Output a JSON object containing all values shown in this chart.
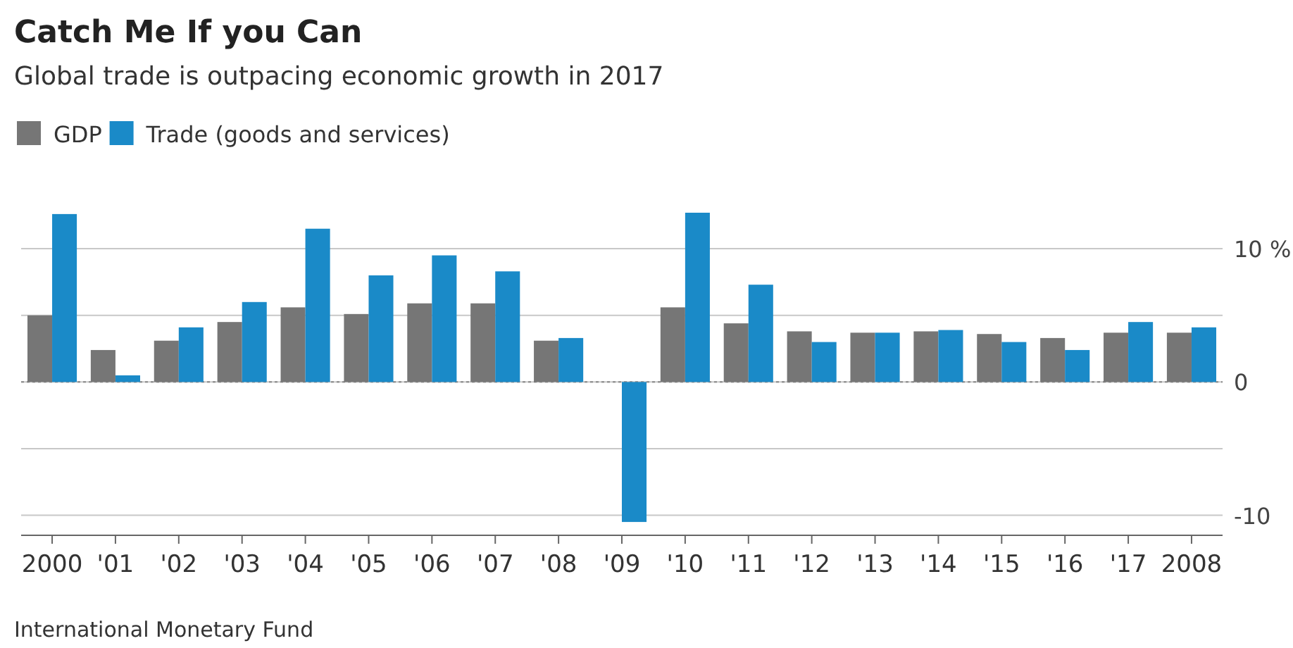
{
  "chart_data": {
    "type": "bar",
    "title": "Catch Me If you Can",
    "subtitle": "Global trade is outpacing economic growth in 2017",
    "categories": [
      "2000",
      "'01",
      "'02",
      "'03",
      "'04",
      "'05",
      "'06",
      "'07",
      "'08",
      "'09",
      "'10",
      "'11",
      "'12",
      "'13",
      "'14",
      "'15",
      "'16",
      "'17",
      "2008"
    ],
    "series": [
      {
        "name": "GDP",
        "color": "#767676",
        "values": [
          5.0,
          2.4,
          3.1,
          4.5,
          5.6,
          5.1,
          5.9,
          5.9,
          3.1,
          null,
          5.6,
          4.4,
          3.8,
          3.7,
          3.8,
          3.6,
          3.3,
          3.7,
          3.7
        ]
      },
      {
        "name": "Trade (goods and services)",
        "color": "#1a8ac8",
        "values": [
          12.6,
          0.5,
          4.1,
          6.0,
          11.5,
          8.0,
          9.5,
          8.3,
          3.3,
          -10.5,
          12.7,
          7.3,
          3.0,
          3.7,
          3.9,
          3.0,
          2.4,
          4.5,
          4.1
        ]
      }
    ],
    "ylim": [
      -11.5,
      12.7
    ],
    "yticks": [
      -10,
      {
        "value": -5,
        "label": null
      },
      0,
      {
        "value": 5,
        "label": null
      },
      {
        "value": 10,
        "label": "10 %"
      }
    ],
    "grid": "y",
    "legend": "top left",
    "ref_lines": [
      {
        "axis": "y",
        "value": 0,
        "line_style": "dotted",
        "color": "#888888"
      }
    ],
    "annotations": [
      "International Monetary Fund"
    ]
  }
}
